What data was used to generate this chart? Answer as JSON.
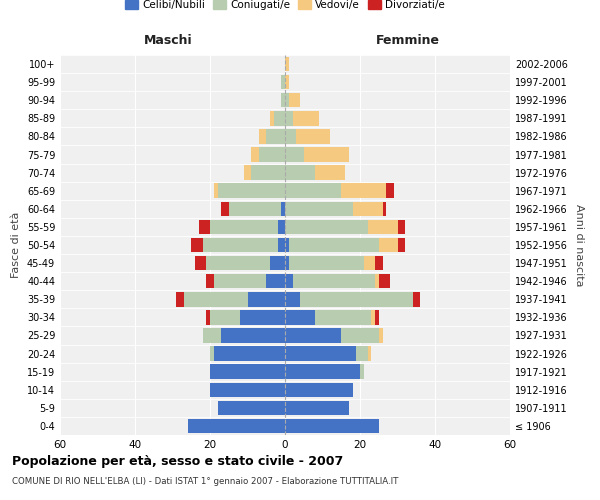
{
  "age_groups": [
    "100+",
    "95-99",
    "90-94",
    "85-89",
    "80-84",
    "75-79",
    "70-74",
    "65-69",
    "60-64",
    "55-59",
    "50-54",
    "45-49",
    "40-44",
    "35-39",
    "30-34",
    "25-29",
    "20-24",
    "15-19",
    "10-14",
    "5-9",
    "0-4"
  ],
  "birth_years": [
    "≤ 1906",
    "1907-1911",
    "1912-1916",
    "1917-1921",
    "1922-1926",
    "1927-1931",
    "1932-1936",
    "1937-1941",
    "1942-1946",
    "1947-1951",
    "1952-1956",
    "1957-1961",
    "1962-1966",
    "1967-1971",
    "1972-1976",
    "1977-1981",
    "1982-1986",
    "1987-1991",
    "1992-1996",
    "1997-2001",
    "2002-2006"
  ],
  "male": {
    "celibi": [
      0,
      0,
      0,
      0,
      0,
      0,
      0,
      0,
      1,
      2,
      2,
      4,
      5,
      10,
      12,
      17,
      19,
      20,
      20,
      18,
      26
    ],
    "coniugati": [
      0,
      1,
      1,
      3,
      5,
      7,
      9,
      18,
      14,
      18,
      20,
      17,
      14,
      17,
      8,
      5,
      1,
      0,
      0,
      0,
      0
    ],
    "vedovi": [
      0,
      0,
      0,
      1,
      2,
      2,
      2,
      1,
      0,
      0,
      0,
      0,
      0,
      0,
      0,
      0,
      0,
      0,
      0,
      0,
      0
    ],
    "divorziati": [
      0,
      0,
      0,
      0,
      0,
      0,
      0,
      0,
      2,
      3,
      3,
      3,
      2,
      2,
      1,
      0,
      0,
      0,
      0,
      0,
      0
    ]
  },
  "female": {
    "nubili": [
      0,
      0,
      0,
      0,
      0,
      0,
      0,
      0,
      0,
      0,
      1,
      1,
      2,
      4,
      8,
      15,
      19,
      20,
      18,
      17,
      25
    ],
    "coniugate": [
      0,
      0,
      1,
      2,
      3,
      5,
      8,
      15,
      18,
      22,
      24,
      20,
      22,
      30,
      15,
      10,
      3,
      1,
      0,
      0,
      0
    ],
    "vedove": [
      1,
      1,
      3,
      7,
      9,
      12,
      8,
      12,
      8,
      8,
      5,
      3,
      1,
      0,
      1,
      1,
      1,
      0,
      0,
      0,
      0
    ],
    "divorziate": [
      0,
      0,
      0,
      0,
      0,
      0,
      0,
      2,
      1,
      2,
      2,
      2,
      3,
      2,
      1,
      0,
      0,
      0,
      0,
      0,
      0
    ]
  },
  "colors": {
    "celibi": "#4472C4",
    "coniugati": "#B8CCB0",
    "vedovi": "#F5C97F",
    "divorziati": "#CC2222"
  },
  "xlim": 60,
  "title": "Popolazione per età, sesso e stato civile - 2007",
  "subtitle": "COMUNE DI RIO NELL'ELBA (LI) - Dati ISTAT 1° gennaio 2007 - Elaborazione TUTTITALIA.IT",
  "ylabel_left": "Fasce di età",
  "ylabel_right": "Anni di nascita",
  "xlabel_left": "Maschi",
  "xlabel_right": "Femmine",
  "legend_labels": [
    "Celibi/Nubili",
    "Coniugati/e",
    "Vedovi/e",
    "Divorziati/e"
  ],
  "bg_color": "#ffffff",
  "plot_bg_color": "#f0f0f0",
  "grid_color": "#ffffff"
}
